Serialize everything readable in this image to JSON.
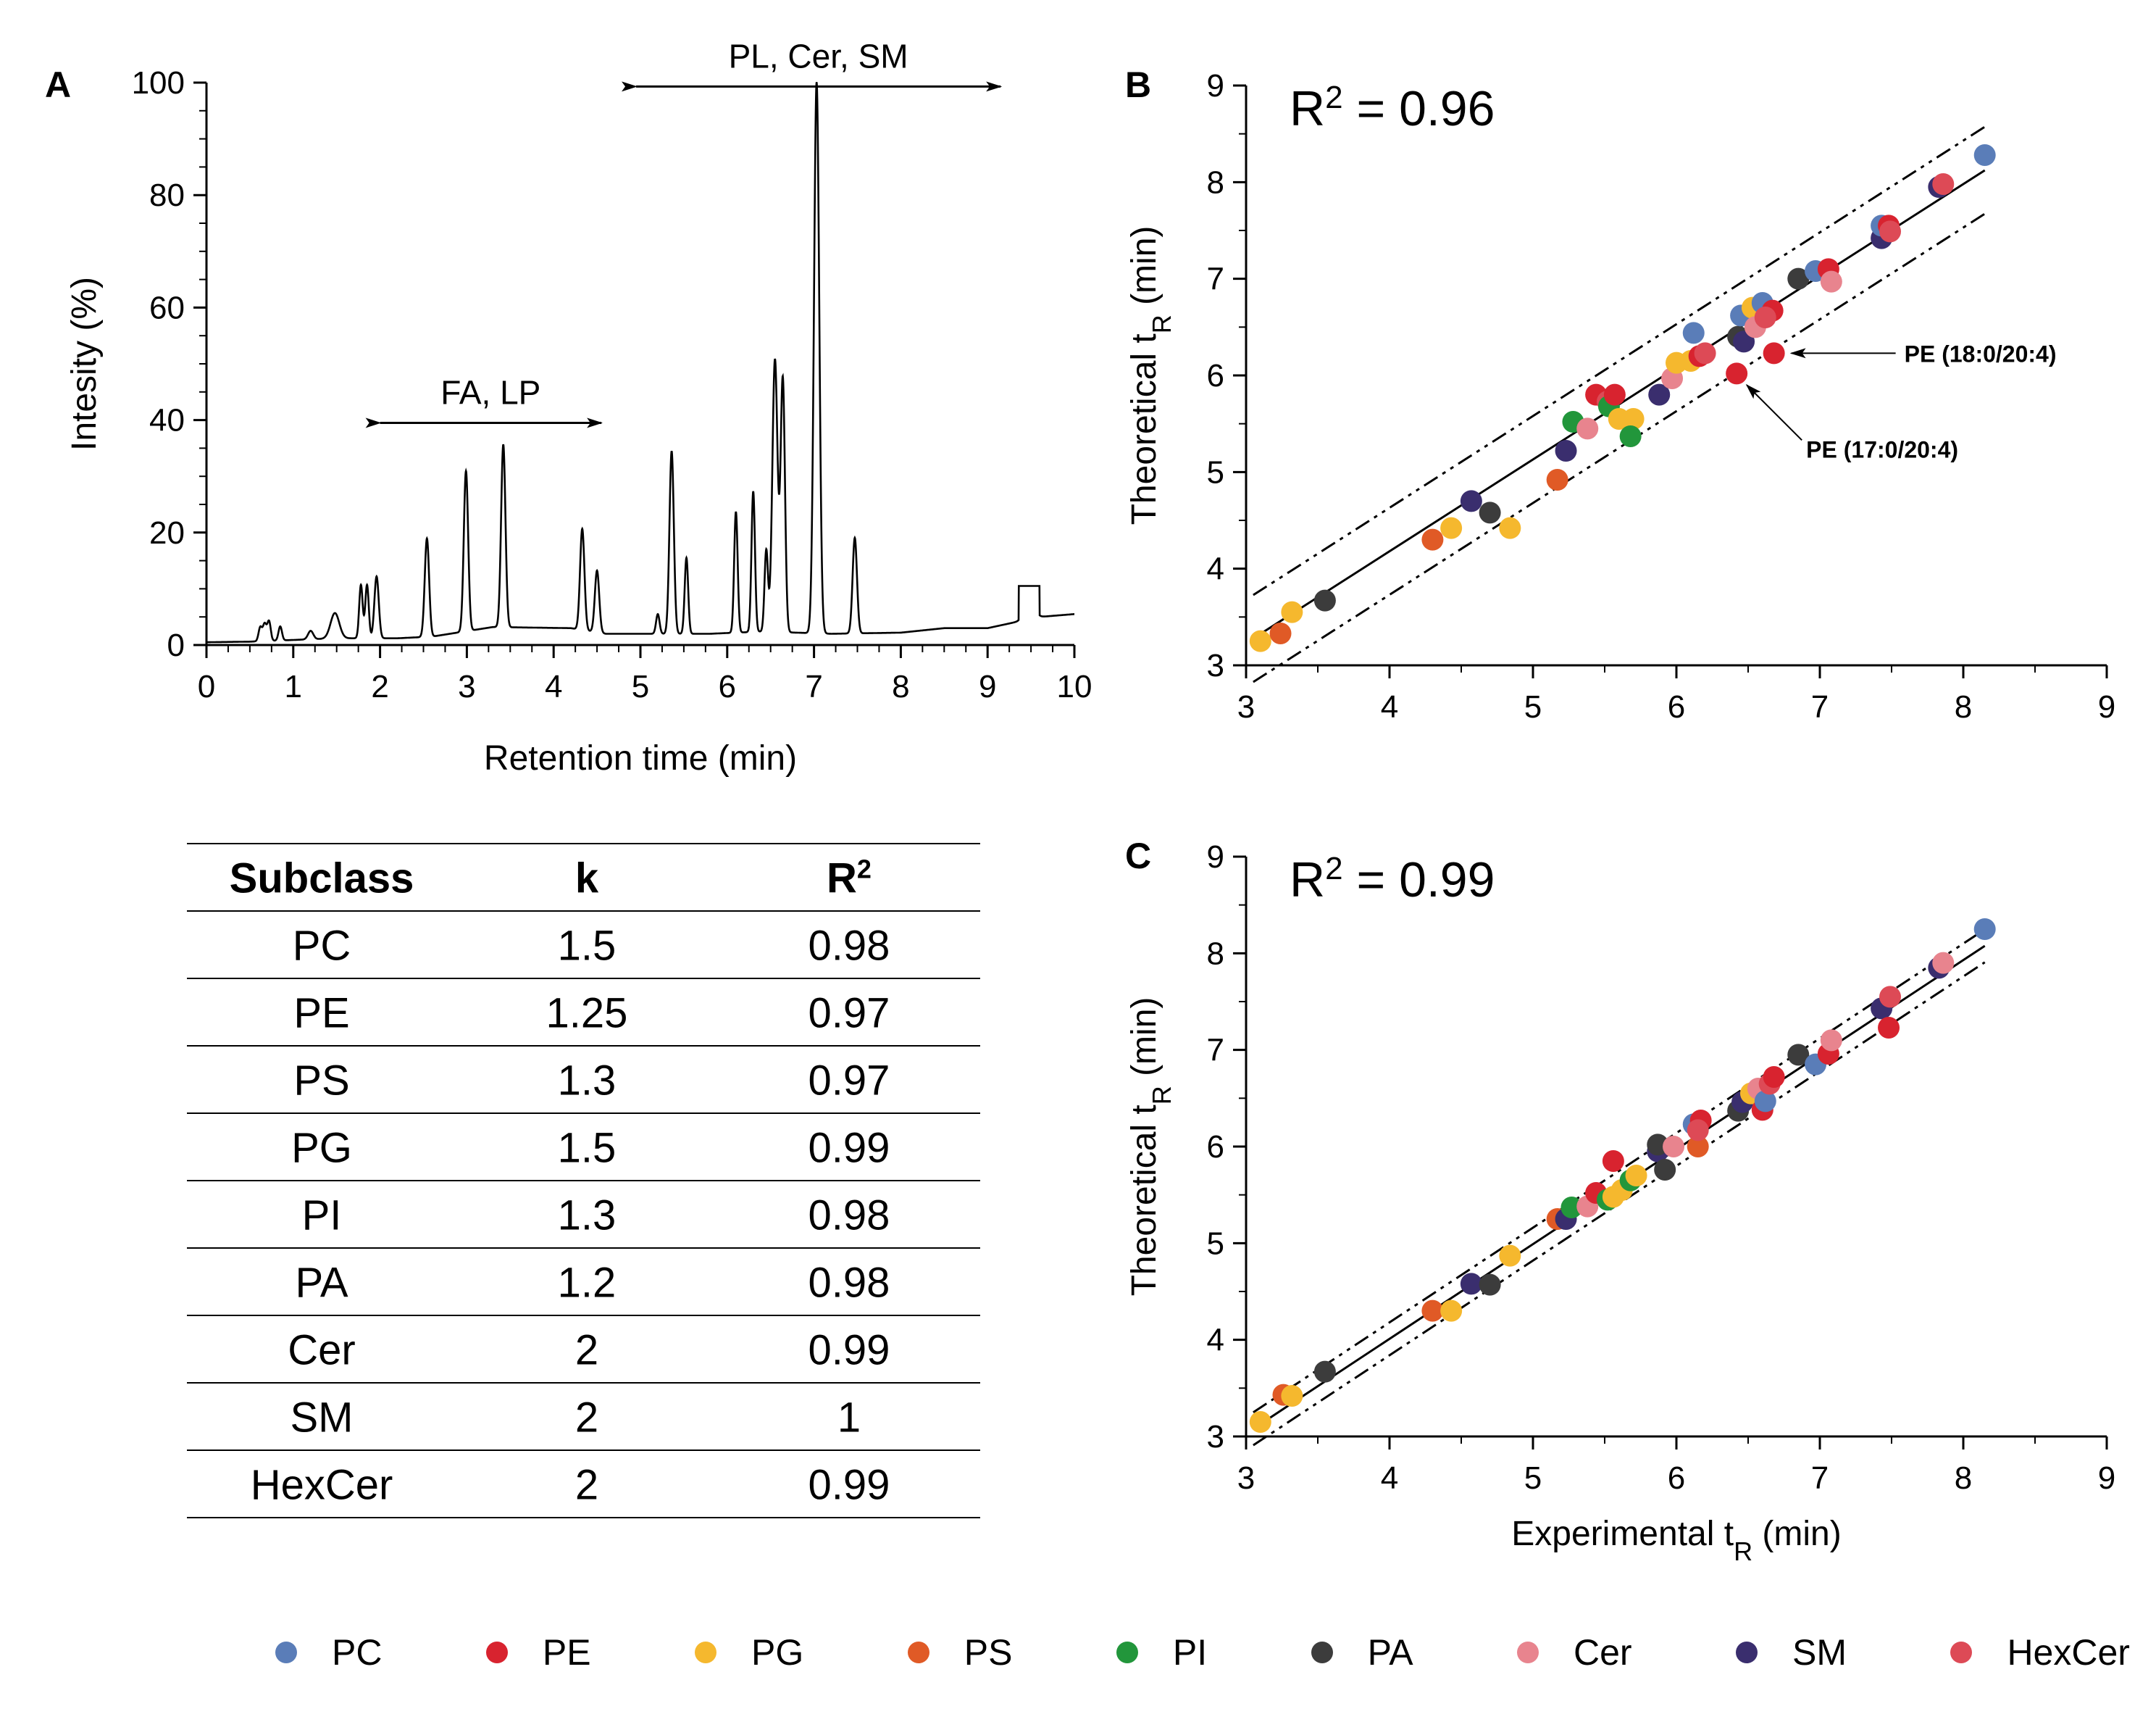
{
  "colors": {
    "PC": "#5a7db8",
    "PE": "#d8232f",
    "PG": "#f5b82e",
    "PS": "#e05a26",
    "PI": "#22963b",
    "PA": "#3c3c3c",
    "Cer": "#e8848e",
    "SM": "#3a2e6e",
    "HexCer": "#dd4a56"
  },
  "chart_data": [
    {
      "panel": "A",
      "type": "line",
      "xlabel": "Retention time (min)",
      "ylabel": "Intesity (%)",
      "xlim": [
        0,
        10
      ],
      "ylim": [
        0,
        100
      ],
      "xticks": [
        "0",
        "1",
        "2",
        "3",
        "4",
        "5",
        "6",
        "7",
        "8",
        "9",
        "10"
      ],
      "yticks": [
        "0",
        "20",
        "40",
        "60",
        "80",
        "100"
      ],
      "annotations": [
        {
          "text": "FA, LP",
          "range": [
            2.0,
            4.55
          ],
          "y": 39.5
        },
        {
          "text": "PL, Cer, SM",
          "range": [
            4.95,
            9.15
          ],
          "y": 99.3
        }
      ],
      "baseline": [
        [
          0,
          0.5
        ],
        [
          0.5,
          0.6
        ],
        [
          1.5,
          1.2
        ],
        [
          2.2,
          1.2
        ],
        [
          2.6,
          1.5
        ],
        [
          3.3,
          3.2
        ],
        [
          4.2,
          3
        ],
        [
          4.6,
          2
        ],
        [
          5.0,
          2
        ],
        [
          5.8,
          2
        ],
        [
          6.4,
          2.4
        ],
        [
          7.2,
          2
        ],
        [
          8.0,
          2.2
        ],
        [
          8.5,
          3
        ],
        [
          9.0,
          3
        ],
        [
          9.6,
          5
        ],
        [
          10.0,
          5.5
        ]
      ],
      "peaks": [
        {
          "x": 0.62,
          "h": 2.5,
          "w": 0.02
        },
        {
          "x": 0.67,
          "h": 3,
          "w": 0.02
        },
        {
          "x": 0.72,
          "h": 3.5,
          "w": 0.02
        },
        {
          "x": 0.85,
          "h": 2.5,
          "w": 0.02
        },
        {
          "x": 1.2,
          "h": 1.5,
          "w": 0.03
        },
        {
          "x": 1.48,
          "h": 4.5,
          "w": 0.05
        },
        {
          "x": 1.78,
          "h": 9.5,
          "w": 0.02
        },
        {
          "x": 1.85,
          "h": 9.5,
          "w": 0.02
        },
        {
          "x": 1.96,
          "h": 11,
          "w": 0.025
        },
        {
          "x": 2.54,
          "h": 17.5,
          "w": 0.025
        },
        {
          "x": 2.99,
          "h": 28.5,
          "w": 0.025
        },
        {
          "x": 3.42,
          "h": 32.5,
          "w": 0.025
        },
        {
          "x": 4.33,
          "h": 18,
          "w": 0.025
        },
        {
          "x": 4.5,
          "h": 11,
          "w": 0.025
        },
        {
          "x": 5.2,
          "h": 3.5,
          "w": 0.02
        },
        {
          "x": 5.36,
          "h": 32.5,
          "w": 0.025
        },
        {
          "x": 5.53,
          "h": 13.5,
          "w": 0.02
        },
        {
          "x": 6.1,
          "h": 21.5,
          "w": 0.02
        },
        {
          "x": 6.3,
          "h": 25,
          "w": 0.02
        },
        {
          "x": 6.45,
          "h": 14.5,
          "w": 0.02
        },
        {
          "x": 6.55,
          "h": 48.5,
          "w": 0.03
        },
        {
          "x": 6.64,
          "h": 45,
          "w": 0.025
        },
        {
          "x": 7.03,
          "h": 98,
          "w": 0.03
        },
        {
          "x": 7.47,
          "h": 17,
          "w": 0.025
        },
        {
          "x": 9.48,
          "h": 5,
          "w": 0.05
        }
      ]
    },
    {
      "panel": "B",
      "type": "scatter",
      "xlabel": "",
      "ylabel": "Theoretical tR (min)",
      "xlim": [
        3,
        9
      ],
      "ylim": [
        3,
        9
      ],
      "xticks": [
        "3",
        "4",
        "5",
        "6",
        "7",
        "8",
        "9"
      ],
      "yticks": [
        "3",
        "4",
        "5",
        "6",
        "7",
        "8",
        "9"
      ],
      "r2": "R2 = 0.96",
      "fit": {
        "slope": 0.95,
        "intercept": 0.38,
        "band": 0.45
      },
      "fit_lines_x": [
        3.05,
        8.15
      ],
      "annotations": [
        {
          "text": "PE (18:0/20:4)",
          "point": [
            6.68,
            6.23
          ]
        },
        {
          "text": "PE (17:0/20:4)",
          "point": [
            6.42,
            6.02
          ]
        }
      ],
      "points": [
        {
          "s": "PG",
          "x": 3.1,
          "y": 3.25
        },
        {
          "s": "PS",
          "x": 3.24,
          "y": 3.33
        },
        {
          "s": "PG",
          "x": 3.32,
          "y": 3.55
        },
        {
          "s": "PA",
          "x": 3.55,
          "y": 3.67
        },
        {
          "s": "PS",
          "x": 4.3,
          "y": 4.3
        },
        {
          "s": "PG",
          "x": 4.43,
          "y": 4.42
        },
        {
          "s": "SM",
          "x": 4.57,
          "y": 4.7
        },
        {
          "s": "PA",
          "x": 4.7,
          "y": 4.58
        },
        {
          "s": "PG",
          "x": 4.84,
          "y": 4.42
        },
        {
          "s": "PS",
          "x": 5.17,
          "y": 4.92
        },
        {
          "s": "SM",
          "x": 5.23,
          "y": 5.22
        },
        {
          "s": "PI",
          "x": 5.28,
          "y": 5.52
        },
        {
          "s": "Cer",
          "x": 5.38,
          "y": 5.45
        },
        {
          "s": "PE",
          "x": 5.44,
          "y": 5.8
        },
        {
          "s": "HexCer",
          "x": 5.52,
          "y": 5.73
        },
        {
          "s": "PI",
          "x": 5.53,
          "y": 5.68
        },
        {
          "s": "PE",
          "x": 5.57,
          "y": 5.8
        },
        {
          "s": "PG",
          "x": 5.6,
          "y": 5.55
        },
        {
          "s": "PG",
          "x": 5.7,
          "y": 5.55
        },
        {
          "s": "PI",
          "x": 5.68,
          "y": 5.37
        },
        {
          "s": "SM",
          "x": 5.88,
          "y": 5.8
        },
        {
          "s": "Cer",
          "x": 5.97,
          "y": 5.97
        },
        {
          "s": "PG",
          "x": 6.0,
          "y": 6.13
        },
        {
          "s": "PG",
          "x": 6.1,
          "y": 6.15
        },
        {
          "s": "PC",
          "x": 6.12,
          "y": 6.44
        },
        {
          "s": "PE",
          "x": 6.16,
          "y": 6.2
        },
        {
          "s": "HexCer",
          "x": 6.2,
          "y": 6.23
        },
        {
          "s": "PA",
          "x": 6.43,
          "y": 6.4
        },
        {
          "s": "PC",
          "x": 6.45,
          "y": 6.62
        },
        {
          "s": "SM",
          "x": 6.47,
          "y": 6.35
        },
        {
          "s": "PG",
          "x": 6.53,
          "y": 6.7
        },
        {
          "s": "Cer",
          "x": 6.55,
          "y": 6.5
        },
        {
          "s": "PC",
          "x": 6.6,
          "y": 6.75
        },
        {
          "s": "PE",
          "x": 6.67,
          "y": 6.67
        },
        {
          "s": "HexCer",
          "x": 6.62,
          "y": 6.6
        },
        {
          "s": "PE",
          "x": 6.68,
          "y": 6.23
        },
        {
          "s": "PE",
          "x": 6.42,
          "y": 6.02
        },
        {
          "s": "PA",
          "x": 6.85,
          "y": 7.0
        },
        {
          "s": "PC",
          "x": 6.97,
          "y": 7.08
        },
        {
          "s": "PE",
          "x": 7.06,
          "y": 7.1
        },
        {
          "s": "Cer",
          "x": 7.08,
          "y": 6.97
        },
        {
          "s": "SM",
          "x": 7.43,
          "y": 7.42
        },
        {
          "s": "PC",
          "x": 7.43,
          "y": 7.55
        },
        {
          "s": "PE",
          "x": 7.48,
          "y": 7.55
        },
        {
          "s": "HexCer",
          "x": 7.49,
          "y": 7.49
        },
        {
          "s": "SM",
          "x": 7.83,
          "y": 7.95
        },
        {
          "s": "HexCer",
          "x": 7.86,
          "y": 7.98
        },
        {
          "s": "PC",
          "x": 8.15,
          "y": 8.28
        }
      ]
    },
    {
      "panel": "C",
      "type": "scatter",
      "xlabel": "Experimental tR (min)",
      "ylabel": "Theoretical tR (min)",
      "xlim": [
        3,
        9
      ],
      "ylim": [
        3,
        9
      ],
      "xticks": [
        "3",
        "4",
        "5",
        "6",
        "7",
        "8",
        "9"
      ],
      "yticks": [
        "3",
        "4",
        "5",
        "6",
        "7",
        "8",
        "9"
      ],
      "r2": "R2 = 0.99",
      "fit": {
        "slope": 0.98,
        "intercept": 0.09,
        "band": 0.17
      },
      "fit_lines_x": [
        3.05,
        8.15
      ],
      "points": [
        {
          "s": "PG",
          "x": 3.1,
          "y": 3.15
        },
        {
          "s": "PS",
          "x": 3.26,
          "y": 3.43
        },
        {
          "s": "PG",
          "x": 3.32,
          "y": 3.42
        },
        {
          "s": "PA",
          "x": 3.55,
          "y": 3.67
        },
        {
          "s": "PS",
          "x": 4.3,
          "y": 4.3
        },
        {
          "s": "PG",
          "x": 4.43,
          "y": 4.3
        },
        {
          "s": "SM",
          "x": 4.57,
          "y": 4.58
        },
        {
          "s": "PA",
          "x": 4.7,
          "y": 4.57
        },
        {
          "s": "PG",
          "x": 4.84,
          "y": 4.87
        },
        {
          "s": "PS",
          "x": 5.17,
          "y": 5.25
        },
        {
          "s": "SM",
          "x": 5.23,
          "y": 5.25
        },
        {
          "s": "PI",
          "x": 5.27,
          "y": 5.37
        },
        {
          "s": "Cer",
          "x": 5.38,
          "y": 5.38
        },
        {
          "s": "PE",
          "x": 5.44,
          "y": 5.52
        },
        {
          "s": "PI",
          "x": 5.52,
          "y": 5.45
        },
        {
          "s": "PE",
          "x": 5.56,
          "y": 5.85
        },
        {
          "s": "PG",
          "x": 5.56,
          "y": 5.48
        },
        {
          "s": "PG",
          "x": 5.62,
          "y": 5.55
        },
        {
          "s": "PI",
          "x": 5.68,
          "y": 5.65
        },
        {
          "s": "PG",
          "x": 5.72,
          "y": 5.7
        },
        {
          "s": "SM",
          "x": 5.87,
          "y": 5.95
        },
        {
          "s": "PA",
          "x": 5.87,
          "y": 6.02
        },
        {
          "s": "PA",
          "x": 5.92,
          "y": 5.76
        },
        {
          "s": "Cer",
          "x": 5.98,
          "y": 6.0
        },
        {
          "s": "PC",
          "x": 6.12,
          "y": 6.23
        },
        {
          "s": "PS",
          "x": 6.15,
          "y": 6.0
        },
        {
          "s": "PE",
          "x": 6.17,
          "y": 6.27
        },
        {
          "s": "HexCer",
          "x": 6.15,
          "y": 6.17
        },
        {
          "s": "PA",
          "x": 6.43,
          "y": 6.37
        },
        {
          "s": "SM",
          "x": 6.46,
          "y": 6.46
        },
        {
          "s": "PG",
          "x": 6.52,
          "y": 6.55
        },
        {
          "s": "Cer",
          "x": 6.57,
          "y": 6.6
        },
        {
          "s": "PE",
          "x": 6.6,
          "y": 6.38
        },
        {
          "s": "PC",
          "x": 6.62,
          "y": 6.47
        },
        {
          "s": "HexCer",
          "x": 6.65,
          "y": 6.65
        },
        {
          "s": "PE",
          "x": 6.68,
          "y": 6.72
        },
        {
          "s": "PA",
          "x": 6.85,
          "y": 6.95
        },
        {
          "s": "PC",
          "x": 6.97,
          "y": 6.85
        },
        {
          "s": "PE",
          "x": 7.06,
          "y": 6.96
        },
        {
          "s": "Cer",
          "x": 7.08,
          "y": 7.1
        },
        {
          "s": "SM",
          "x": 7.43,
          "y": 7.43
        },
        {
          "s": "PE",
          "x": 7.48,
          "y": 7.23
        },
        {
          "s": "HexCer",
          "x": 7.49,
          "y": 7.55
        },
        {
          "s": "SM",
          "x": 7.83,
          "y": 7.85
        },
        {
          "s": "Cer",
          "x": 7.86,
          "y": 7.9
        },
        {
          "s": "PC",
          "x": 8.15,
          "y": 8.25
        }
      ]
    },
    {
      "panel": "table",
      "type": "table",
      "columns": [
        "Subclass",
        "k",
        "R2"
      ],
      "rows": [
        [
          "PC",
          "1.5",
          "0.98"
        ],
        [
          "PE",
          "1.25",
          "0.97"
        ],
        [
          "PS",
          "1.3",
          "0.97"
        ],
        [
          "PG",
          "1.5",
          "0.99"
        ],
        [
          "PI",
          "1.3",
          "0.98"
        ],
        [
          "PA",
          "1.2",
          "0.98"
        ],
        [
          "Cer",
          "2",
          "0.99"
        ],
        [
          "SM",
          "2",
          "1"
        ],
        [
          "HexCer",
          "2",
          "0.99"
        ]
      ]
    }
  ],
  "legend": [
    {
      "key": "PC",
      "label": "PC"
    },
    {
      "key": "PE",
      "label": "PE"
    },
    {
      "key": "PG",
      "label": "PG"
    },
    {
      "key": "PS",
      "label": "PS"
    },
    {
      "key": "PI",
      "label": "PI"
    },
    {
      "key": "PA",
      "label": "PA"
    },
    {
      "key": "Cer",
      "label": "Cer"
    },
    {
      "key": "SM",
      "label": "SM"
    },
    {
      "key": "HexCer",
      "label": "HexCer"
    }
  ],
  "panel_labels": {
    "a": "A",
    "b": "B",
    "c": "C"
  }
}
